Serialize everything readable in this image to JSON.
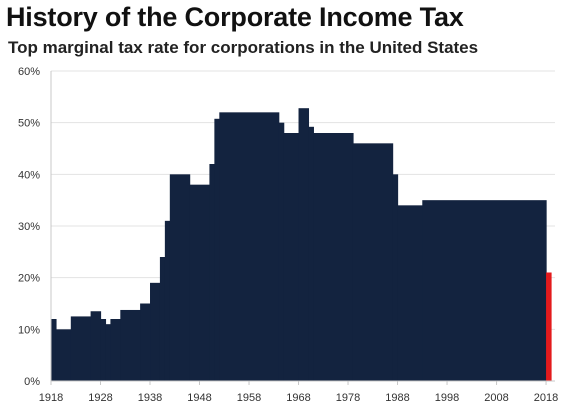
{
  "chart_data": {
    "type": "area",
    "title": "History of the Corporate Income Tax",
    "subtitle": "Top marginal tax rate for corporations in the United States",
    "xlabel": "",
    "ylabel": "",
    "xlim": [
      1918,
      2018
    ],
    "ylim": [
      0,
      60
    ],
    "x_ticks": [
      "1918",
      "1928",
      "1938",
      "1948",
      "1958",
      "1968",
      "1978",
      "1988",
      "1998",
      "2008",
      "2018"
    ],
    "y_ticks": [
      "0%",
      "10%",
      "20%",
      "30%",
      "40%",
      "50%",
      "60%"
    ],
    "grid": true,
    "legend": "none",
    "series_color": "#13233f",
    "highlight_color": "#e31a1c",
    "steps": [
      {
        "year": 1918,
        "rate": 12
      },
      {
        "year": 1919,
        "rate": 10
      },
      {
        "year": 1922,
        "rate": 12.5
      },
      {
        "year": 1926,
        "rate": 13.5
      },
      {
        "year": 1928,
        "rate": 12
      },
      {
        "year": 1929,
        "rate": 11
      },
      {
        "year": 1930,
        "rate": 12
      },
      {
        "year": 1932,
        "rate": 13.75
      },
      {
        "year": 1936,
        "rate": 15
      },
      {
        "year": 1938,
        "rate": 19
      },
      {
        "year": 1940,
        "rate": 24
      },
      {
        "year": 1941,
        "rate": 31
      },
      {
        "year": 1942,
        "rate": 40
      },
      {
        "year": 1946,
        "rate": 38
      },
      {
        "year": 1950,
        "rate": 42
      },
      {
        "year": 1951,
        "rate": 50.75
      },
      {
        "year": 1952,
        "rate": 52
      },
      {
        "year": 1964,
        "rate": 50
      },
      {
        "year": 1965,
        "rate": 48
      },
      {
        "year": 1968,
        "rate": 52.8
      },
      {
        "year": 1970,
        "rate": 49.2
      },
      {
        "year": 1971,
        "rate": 48
      },
      {
        "year": 1979,
        "rate": 46
      },
      {
        "year": 1987,
        "rate": 40
      },
      {
        "year": 1988,
        "rate": 34
      },
      {
        "year": 1993,
        "rate": 35
      },
      {
        "year": 2018,
        "rate": 21
      }
    ],
    "highlight_year": 2018
  }
}
